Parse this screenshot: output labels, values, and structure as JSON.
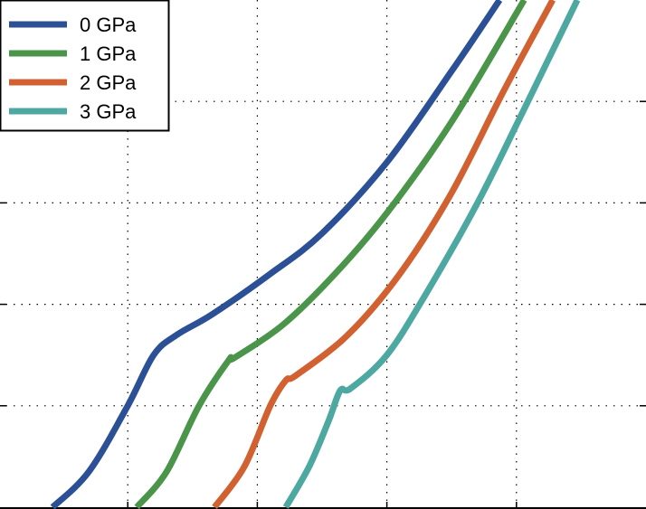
{
  "chart_data": {
    "type": "line",
    "title": "",
    "xlabel": "",
    "ylabel": "",
    "xlim": [
      0,
      5
    ],
    "ylim": [
      0,
      5
    ],
    "grid": true,
    "legend_position": "top-left",
    "series": [
      {
        "name": "0 GPa",
        "color": "#2b5096",
        "x": [
          0.42,
          0.7,
          1.0,
          1.2,
          1.38,
          1.65,
          2.1,
          2.5,
          3.0,
          3.5,
          3.87
        ],
        "y": [
          0.0,
          0.35,
          1.0,
          1.5,
          1.7,
          1.9,
          2.3,
          2.7,
          3.4,
          4.3,
          5.0
        ]
      },
      {
        "name": "1 GPa",
        "color": "#4b954b",
        "x": [
          1.07,
          1.3,
          1.55,
          1.78,
          1.82,
          2.2,
          2.6,
          3.0,
          3.5,
          4.06
        ],
        "y": [
          0.0,
          0.35,
          1.0,
          1.45,
          1.47,
          1.8,
          2.3,
          2.9,
          3.8,
          5.0
        ]
      },
      {
        "name": "2 GPa",
        "color": "#d16131",
        "x": [
          1.67,
          1.9,
          2.1,
          2.22,
          2.3,
          2.7,
          3.1,
          3.5,
          3.9,
          4.28
        ],
        "y": [
          0.0,
          0.4,
          1.0,
          1.25,
          1.3,
          1.7,
          2.3,
          3.1,
          4.1,
          5.0
        ]
      },
      {
        "name": "3 GPa",
        "color": "#4ca8a0",
        "x": [
          2.22,
          2.4,
          2.55,
          2.64,
          2.72,
          3.0,
          3.3,
          3.7,
          4.05,
          4.47
        ],
        "y": [
          0.0,
          0.4,
          0.85,
          1.15,
          1.17,
          1.5,
          2.1,
          3.0,
          3.9,
          5.0
        ]
      }
    ]
  }
}
